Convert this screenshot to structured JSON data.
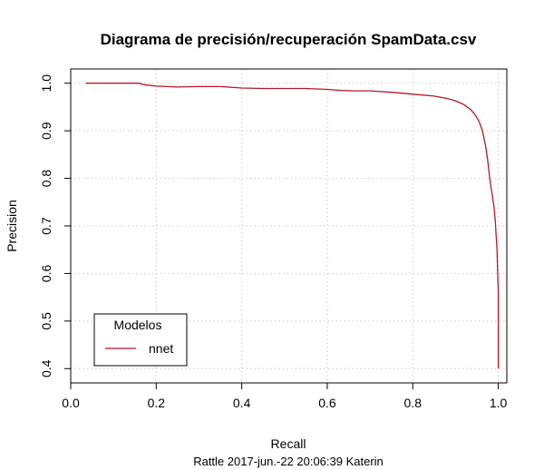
{
  "chart_data": {
    "type": "line",
    "title": "Diagrama de precisión/recuperación  SpamData.csv",
    "xlabel": "Recall",
    "ylabel": "Precision",
    "subtitle": "Rattle 2017-jun.-22 20:06:39 Katerin",
    "xlim": [
      0.0,
      1.02
    ],
    "ylim": [
      0.37,
      1.03
    ],
    "xticks": [
      0.0,
      0.2,
      0.4,
      0.6,
      0.8,
      1.0
    ],
    "xtick_labels": [
      "0.0",
      "0.2",
      "0.4",
      "0.6",
      "0.8",
      "1.0"
    ],
    "yticks": [
      0.4,
      0.5,
      0.6,
      0.7,
      0.8,
      0.9,
      1.0
    ],
    "ytick_labels": [
      "0.4",
      "0.5",
      "0.6",
      "0.7",
      "0.8",
      "0.9",
      "1.0"
    ],
    "grid": true,
    "legend": {
      "title": "Modelos",
      "placement": "bottom-left",
      "entries": [
        {
          "label": "nnet",
          "color": "#b2182b"
        }
      ]
    },
    "series": [
      {
        "name": "nnet",
        "color": "#b2182b",
        "x": [
          0.035,
          0.16,
          0.17,
          0.2,
          0.25,
          0.3,
          0.35,
          0.4,
          0.45,
          0.5,
          0.55,
          0.6,
          0.63,
          0.66,
          0.7,
          0.75,
          0.8,
          0.85,
          0.88,
          0.9,
          0.92,
          0.935,
          0.945,
          0.955,
          0.963,
          0.97,
          0.975,
          0.98,
          0.985,
          0.99,
          0.993,
          0.995,
          0.997,
          0.998,
          0.999,
          1.0,
          1.0
        ],
        "y": [
          1.0,
          1.0,
          0.997,
          0.994,
          0.992,
          0.993,
          0.993,
          0.99,
          0.989,
          0.989,
          0.989,
          0.987,
          0.985,
          0.984,
          0.984,
          0.981,
          0.977,
          0.973,
          0.968,
          0.963,
          0.955,
          0.945,
          0.935,
          0.92,
          0.9,
          0.87,
          0.84,
          0.8,
          0.77,
          0.74,
          0.71,
          0.68,
          0.65,
          0.62,
          0.59,
          0.56,
          0.4
        ]
      }
    ]
  }
}
